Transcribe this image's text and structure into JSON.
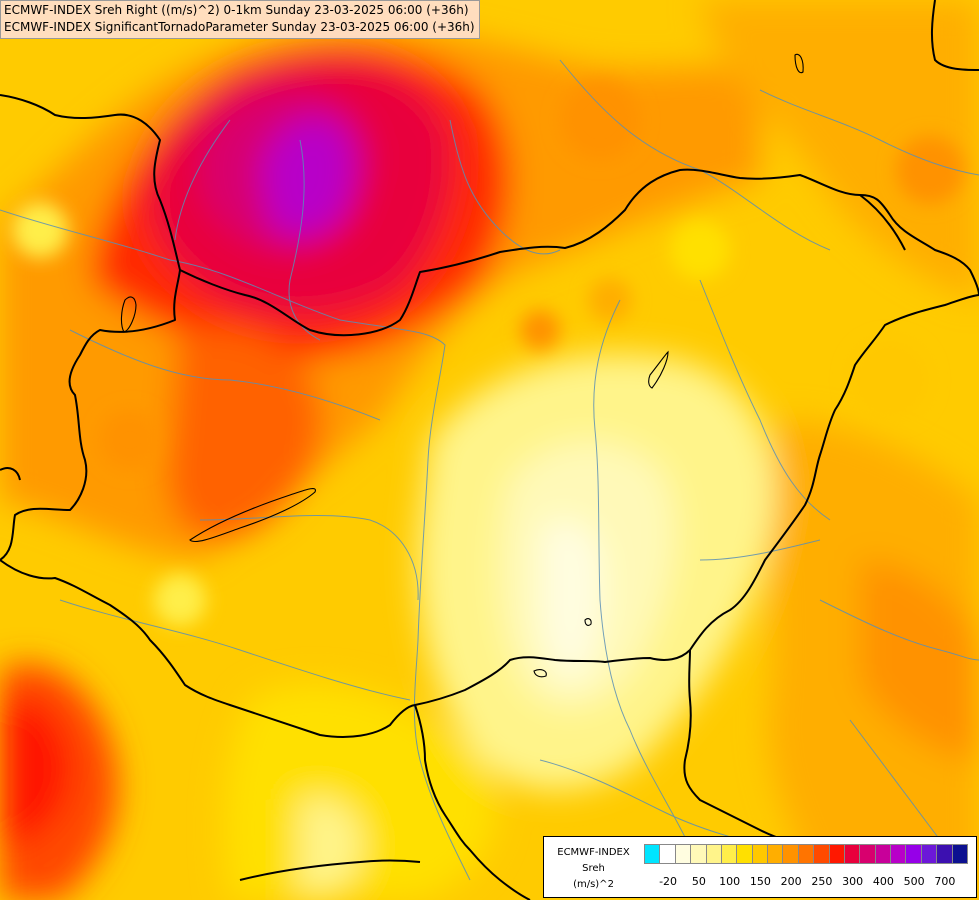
{
  "titles": {
    "line1": "ECMWF-INDEX Sreh Right ((m/s)^2) 0-1km Sunday 23-03-2025 06:00 (+36h)",
    "line2": "ECMWF-INDEX SignificantTornadoParameter Sunday 23-03-2025 06:00 (+36h)"
  },
  "legend": {
    "source": "ECMWF-INDEX",
    "variable": "Sreh",
    "unit": "(m/s)^2",
    "colors": [
      "#00e5ff",
      "#ffffff",
      "#fffde0",
      "#fff9b8",
      "#fff48a",
      "#ffee4a",
      "#ffe000",
      "#ffc800",
      "#ffae00",
      "#ff9200",
      "#ff7400",
      "#ff4a00",
      "#ff1800",
      "#e8003c",
      "#d8006e",
      "#c8009a",
      "#b800c8",
      "#9600e8",
      "#6c18d8",
      "#3c10b0",
      "#0c1090"
    ],
    "ticks": [
      "-20",
      "50",
      "100",
      "150",
      "200",
      "250",
      "300",
      "400",
      "500",
      "700"
    ]
  }
}
